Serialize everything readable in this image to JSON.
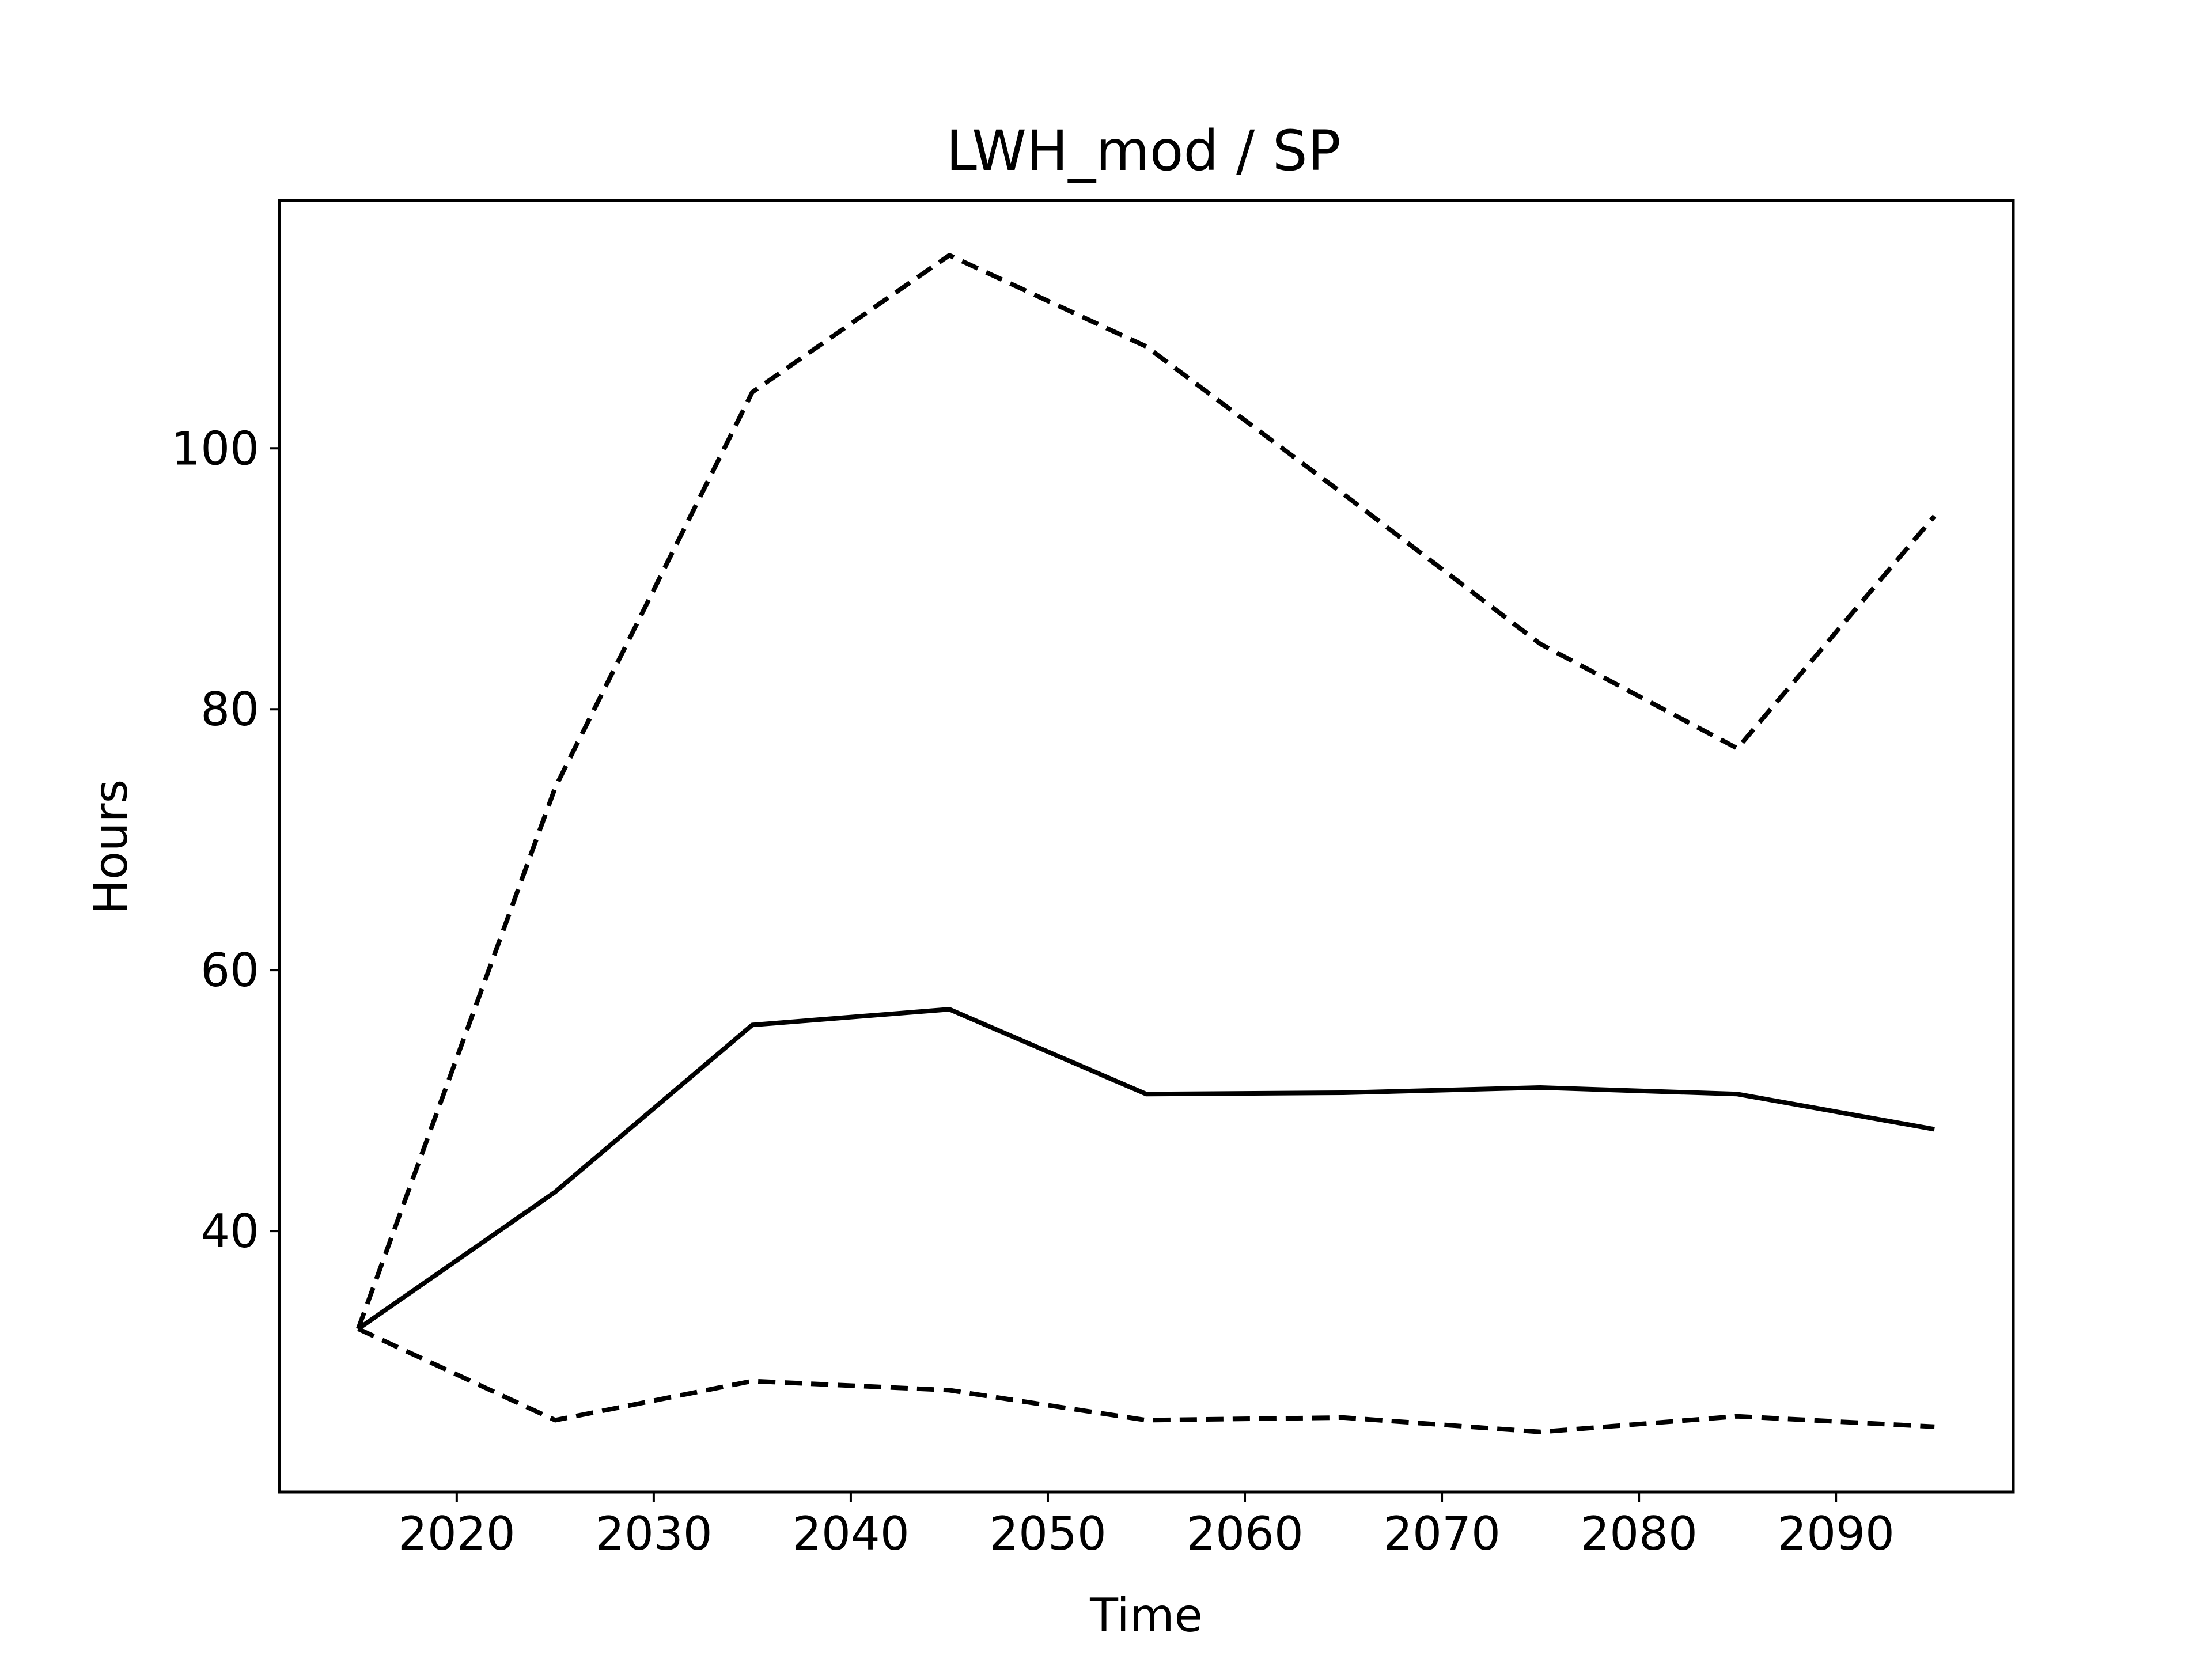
{
  "chart_data": {
    "type": "line",
    "title": "LWH_mod / SP",
    "xlabel": "Time",
    "ylabel": "Hours",
    "x": [
      2015,
      2025,
      2035,
      2045,
      2055,
      2065,
      2075,
      2085,
      2095
    ],
    "xlim": [
      2011,
      2099
    ],
    "ylim": [
      20,
      119
    ],
    "xticks": [
      "2020",
      "2030",
      "2040",
      "2050",
      "2060",
      "2070",
      "2080",
      "2090"
    ],
    "yticks": [
      "40",
      "60",
      "80",
      "100"
    ],
    "grid": false,
    "series": [
      {
        "style": "solid",
        "color": "#000000",
        "values": [
          32.5,
          43.0,
          55.8,
          57.0,
          50.5,
          50.6,
          51.0,
          50.5,
          47.8
        ]
      },
      {
        "style": "dashed",
        "color": "#000000",
        "values": [
          32.5,
          74.0,
          104.3,
          114.8,
          107.8,
          96.5,
          85.0,
          77.0,
          94.8
        ]
      },
      {
        "style": "dashed",
        "color": "#000000",
        "values": [
          32.5,
          25.5,
          28.5,
          27.8,
          25.5,
          25.7,
          24.6,
          25.8,
          25.0
        ]
      }
    ]
  }
}
